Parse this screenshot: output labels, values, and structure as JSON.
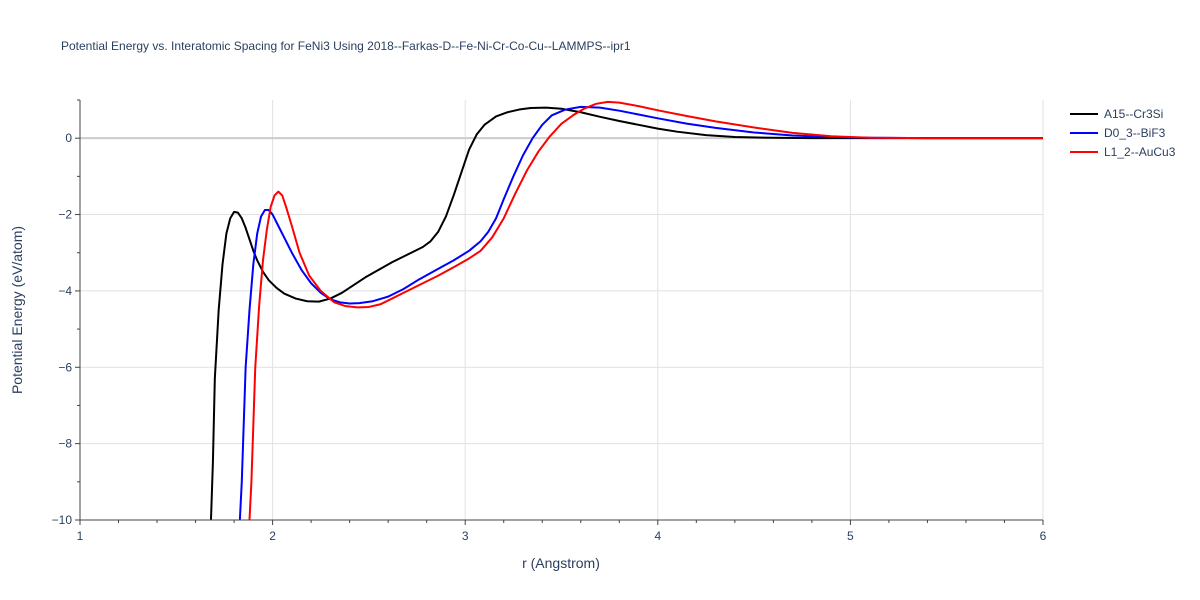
{
  "chart_data": {
    "type": "line",
    "title": "Potential Energy vs. Interatomic Spacing for FeNi3 Using 2018--Farkas-D--Fe-Ni-Cr-Co-Cu--LAMMPS--ipr1",
    "xlabel": "r (Angstrom)",
    "ylabel": "Potential Energy (eV/atom)",
    "xlim": [
      1,
      6
    ],
    "ylim": [
      -10,
      1
    ],
    "x_ticks": [
      1,
      2,
      3,
      4,
      5,
      6
    ],
    "x_tick_labels": [
      "1",
      "2",
      "3",
      "4",
      "5",
      "6"
    ],
    "y_ticks": [
      -10,
      -8,
      -6,
      -4,
      -2,
      0
    ],
    "y_tick_labels": [
      "−10",
      "−8",
      "−6",
      "−4",
      "−2",
      "0"
    ],
    "grid": true,
    "legend_position": "top-right",
    "series": [
      {
        "name": "A15--Cr3Si",
        "color": "#000000",
        "x": [
          1.68,
          1.69,
          1.7,
          1.72,
          1.74,
          1.76,
          1.78,
          1.8,
          1.82,
          1.84,
          1.86,
          1.88,
          1.9,
          1.92,
          1.95,
          1.98,
          2.02,
          2.06,
          2.12,
          2.18,
          2.24,
          2.3,
          2.36,
          2.42,
          2.48,
          2.55,
          2.62,
          2.7,
          2.78,
          2.82,
          2.86,
          2.9,
          2.94,
          2.98,
          3.02,
          3.06,
          3.1,
          3.16,
          3.22,
          3.28,
          3.34,
          3.42,
          3.5,
          3.6,
          3.7,
          3.8,
          3.9,
          4.0,
          4.1,
          4.25,
          4.4,
          4.6,
          4.8,
          5.0,
          5.2,
          5.5,
          6.0
        ],
        "y": [
          -10.0,
          -8.5,
          -6.3,
          -4.5,
          -3.3,
          -2.5,
          -2.1,
          -1.93,
          -1.95,
          -2.1,
          -2.35,
          -2.65,
          -2.95,
          -3.2,
          -3.5,
          -3.72,
          -3.92,
          -4.07,
          -4.2,
          -4.27,
          -4.28,
          -4.2,
          -4.05,
          -3.85,
          -3.65,
          -3.45,
          -3.25,
          -3.05,
          -2.85,
          -2.7,
          -2.45,
          -2.05,
          -1.5,
          -0.9,
          -0.3,
          0.1,
          0.35,
          0.57,
          0.68,
          0.75,
          0.79,
          0.8,
          0.77,
          0.68,
          0.56,
          0.45,
          0.35,
          0.25,
          0.17,
          0.08,
          0.03,
          0.01,
          0.0,
          0.0,
          0.0,
          0.0,
          0.0
        ]
      },
      {
        "name": "D0_3--BiF3",
        "color": "#0000ff",
        "x": [
          1.83,
          1.84,
          1.85,
          1.86,
          1.88,
          1.9,
          1.92,
          1.94,
          1.96,
          1.98,
          2.0,
          2.03,
          2.06,
          2.1,
          2.15,
          2.2,
          2.25,
          2.3,
          2.35,
          2.4,
          2.45,
          2.52,
          2.6,
          2.68,
          2.76,
          2.85,
          2.94,
          3.02,
          3.08,
          3.12,
          3.16,
          3.2,
          3.25,
          3.3,
          3.35,
          3.4,
          3.45,
          3.52,
          3.6,
          3.7,
          3.8,
          3.9,
          4.0,
          4.15,
          4.3,
          4.5,
          4.7,
          4.9,
          5.1,
          5.4,
          6.0
        ],
        "y": [
          -10.0,
          -9.0,
          -7.5,
          -6.0,
          -4.5,
          -3.3,
          -2.5,
          -2.05,
          -1.88,
          -1.88,
          -2.0,
          -2.3,
          -2.6,
          -3.0,
          -3.45,
          -3.8,
          -4.05,
          -4.22,
          -4.3,
          -4.33,
          -4.32,
          -4.27,
          -4.15,
          -3.95,
          -3.7,
          -3.45,
          -3.2,
          -2.95,
          -2.7,
          -2.45,
          -2.1,
          -1.6,
          -1.0,
          -0.45,
          0.0,
          0.35,
          0.6,
          0.75,
          0.82,
          0.8,
          0.72,
          0.62,
          0.52,
          0.38,
          0.27,
          0.15,
          0.07,
          0.03,
          0.01,
          0.0,
          0.0
        ]
      },
      {
        "name": "L1_2--AuCu3",
        "color": "#ff0000",
        "x": [
          1.88,
          1.89,
          1.9,
          1.91,
          1.93,
          1.95,
          1.97,
          1.99,
          2.01,
          2.03,
          2.05,
          2.07,
          2.1,
          2.14,
          2.19,
          2.25,
          2.32,
          2.38,
          2.44,
          2.5,
          2.56,
          2.62,
          2.7,
          2.78,
          2.86,
          2.94,
          3.02,
          3.08,
          3.14,
          3.2,
          3.26,
          3.32,
          3.38,
          3.44,
          3.5,
          3.56,
          3.62,
          3.68,
          3.74,
          3.8,
          3.9,
          4.0,
          4.15,
          4.3,
          4.5,
          4.7,
          4.9,
          5.1,
          5.4,
          6.0
        ],
        "y": [
          -10.0,
          -9.0,
          -7.5,
          -6.0,
          -4.4,
          -3.2,
          -2.4,
          -1.8,
          -1.5,
          -1.4,
          -1.5,
          -1.8,
          -2.3,
          -3.0,
          -3.6,
          -4.0,
          -4.3,
          -4.4,
          -4.43,
          -4.42,
          -4.35,
          -4.2,
          -4.0,
          -3.8,
          -3.6,
          -3.38,
          -3.15,
          -2.95,
          -2.6,
          -2.1,
          -1.45,
          -0.85,
          -0.35,
          0.05,
          0.38,
          0.6,
          0.78,
          0.9,
          0.95,
          0.93,
          0.84,
          0.73,
          0.58,
          0.44,
          0.28,
          0.14,
          0.05,
          0.01,
          0.0,
          0.0
        ]
      }
    ]
  }
}
